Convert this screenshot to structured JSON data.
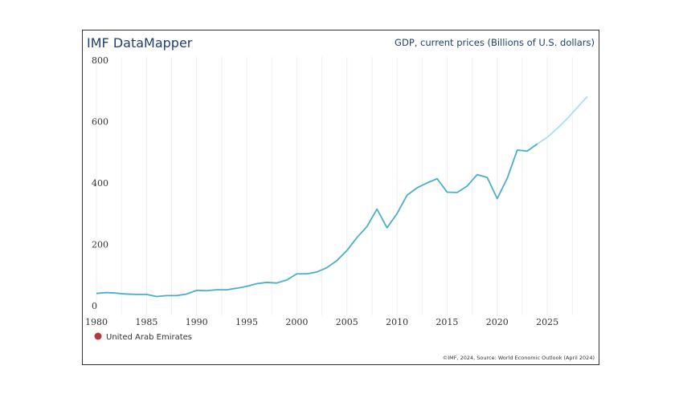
{
  "brand": "IMF DataMapper",
  "chart_data": {
    "type": "line",
    "title": "GDP, current prices (Billions of U.S. dollars)",
    "xlabel": "",
    "ylabel": "",
    "ylim": [
      0,
      800
    ],
    "xlim": [
      1980,
      2029
    ],
    "y_ticks": [
      "0",
      "200",
      "400",
      "600",
      "800"
    ],
    "x_ticks": [
      "1980",
      "1985",
      "1990",
      "1995",
      "2000",
      "2005",
      "2010",
      "2015",
      "2020",
      "2025"
    ],
    "grid": "vertical",
    "legend_position": "bottom-left",
    "series": [
      {
        "name": "United Arab Emirates",
        "legend_color": "#b23a3a",
        "line_color": "#4aaecb",
        "projection_color": "#a8e1ec",
        "x": [
          1980,
          1981,
          1982,
          1983,
          1984,
          1985,
          1986,
          1987,
          1988,
          1989,
          1990,
          1991,
          1992,
          1993,
          1994,
          1995,
          1996,
          1997,
          1998,
          1999,
          2000,
          2001,
          2002,
          2003,
          2004,
          2005,
          2006,
          2007,
          2008,
          2009,
          2010,
          2011,
          2012,
          2013,
          2014,
          2015,
          2016,
          2017,
          2018,
          2019,
          2020,
          2021,
          2022,
          2023,
          2024,
          2025,
          2026,
          2027,
          2028,
          2029
        ],
        "values": [
          40,
          43,
          41,
          38,
          37,
          37,
          30,
          33,
          33,
          38,
          50,
          49,
          52,
          52,
          57,
          63,
          72,
          76,
          74,
          84,
          104,
          104,
          110,
          124,
          147,
          180,
          222,
          258,
          315,
          254,
          300,
          360,
          384,
          400,
          414,
          370,
          369,
          390,
          427,
          418,
          349,
          415,
          507,
          504,
          527,
          549,
          578,
          610,
          646,
          682
        ],
        "projection_start_year": 2024
      }
    ]
  },
  "source_note": "©IMF, 2024, Source: World Economic Outlook (April 2024)"
}
